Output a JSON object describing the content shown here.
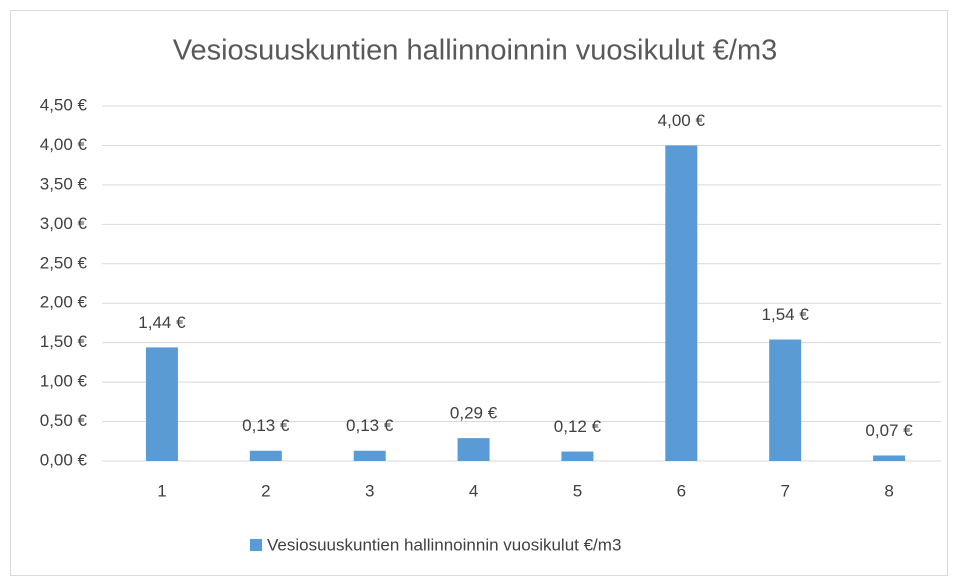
{
  "chart_data": {
    "type": "bar",
    "title": "Vesiosuuskuntien hallinnoinnin vuosikulut €/m3",
    "categories": [
      "1",
      "2",
      "3",
      "4",
      "5",
      "6",
      "7",
      "8"
    ],
    "series": [
      {
        "name": "Vesiosuuskuntien hallinnoinnin vuosikulut €/m3",
        "color": "#5b9bd5",
        "values": [
          1.44,
          0.13,
          0.13,
          0.29,
          0.12,
          4.0,
          1.54,
          0.07
        ],
        "value_labels": [
          "1,44 €",
          "0,13 €",
          "0,13 €",
          "0,29 €",
          "0,12 €",
          "4,00 €",
          "1,54 €",
          "0,07 €"
        ]
      }
    ],
    "ylim": [
      0,
      4.5
    ],
    "yticks": [
      {
        "value": 0,
        "label": "0,00 €"
      },
      {
        "value": 0.5,
        "label": "0,50 €"
      },
      {
        "value": 1,
        "label": "1,00 €"
      },
      {
        "value": 1.5,
        "label": "1,50 €"
      },
      {
        "value": 2,
        "label": "2,00 €"
      },
      {
        "value": 2.5,
        "label": "2,50 €"
      },
      {
        "value": 3,
        "label": "3,00 €"
      },
      {
        "value": 3.5,
        "label": "3,50 €"
      },
      {
        "value": 4,
        "label": "4,00 €"
      },
      {
        "value": 4.5,
        "label": "4,50 €"
      }
    ],
    "grid": true,
    "legend": "bottom"
  }
}
